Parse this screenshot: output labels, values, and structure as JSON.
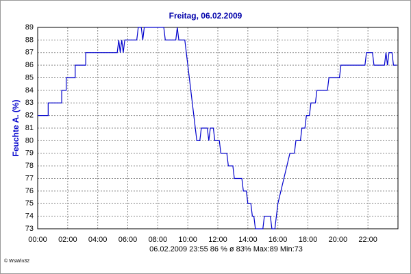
{
  "chart_data": {
    "type": "line",
    "title": "Freitag, 06.02.2009",
    "ylabel": "Feuchte A. (%)",
    "footer": "06.02.2009  23:55   86 %   ø 83%  Max:89  Min:73",
    "credit": "© WsWin32",
    "grid": true,
    "xlim": [
      0,
      24
    ],
    "ylim": [
      73,
      89
    ],
    "yticks": [
      73,
      74,
      75,
      76,
      77,
      78,
      79,
      80,
      81,
      82,
      83,
      84,
      85,
      86,
      87,
      88,
      89
    ],
    "xticks": [
      {
        "value": 0,
        "label": "00:00"
      },
      {
        "value": 2,
        "label": "02:00"
      },
      {
        "value": 4,
        "label": "04:00"
      },
      {
        "value": 6,
        "label": "06:00"
      },
      {
        "value": 8,
        "label": "08:00"
      },
      {
        "value": 10,
        "label": "10:00"
      },
      {
        "value": 12,
        "label": "12:00"
      },
      {
        "value": 14,
        "label": "14:00"
      },
      {
        "value": 16,
        "label": "16:00"
      },
      {
        "value": 18,
        "label": "18:00"
      },
      {
        "value": 20,
        "label": "20:00"
      },
      {
        "value": 22,
        "label": "22:00"
      }
    ],
    "x": [
      0,
      0.7,
      0.7,
      1.6,
      1.6,
      1.9,
      1.9,
      2.5,
      2.5,
      3.2,
      3.2,
      5.3,
      5.4,
      5.5,
      5.6,
      5.7,
      5.8,
      6.6,
      6.7,
      6.9,
      7.0,
      7.1,
      8.4,
      8.5,
      9.2,
      9.3,
      9.4,
      9.8,
      9.9,
      10.0,
      10.1,
      10.2,
      10.3,
      10.4,
      10.5,
      10.6,
      10.8,
      10.9,
      11.3,
      11.4,
      11.5,
      11.7,
      11.8,
      12.1,
      12.2,
      12.6,
      12.7,
      13.0,
      13.1,
      13.6,
      13.7,
      13.9,
      14.0,
      14.2,
      14.3,
      14.4,
      14.5,
      15.0,
      15.1,
      15.5,
      15.6,
      15.8,
      15.9,
      16.0,
      16.2,
      16.4,
      16.6,
      16.8,
      17.1,
      17.2,
      17.5,
      17.6,
      17.8,
      17.9,
      18.1,
      18.2,
      18.5,
      18.6,
      19.3,
      19.4,
      20.1,
      20.2,
      21.8,
      21.9,
      22.3,
      22.4,
      23.1,
      23.2,
      23.3,
      23.4,
      23.6,
      23.7,
      23.92
    ],
    "series": [
      {
        "name": "Feuchte A.",
        "color": "#0000cc",
        "values": [
          82,
          82,
          83,
          83,
          84,
          84,
          85,
          85,
          86,
          86,
          87,
          87,
          88,
          87,
          88,
          87,
          88,
          88,
          89,
          89,
          88,
          89,
          89,
          88,
          88,
          89,
          88,
          88,
          87,
          86,
          85,
          84,
          83,
          82,
          81,
          80,
          80,
          81,
          81,
          80,
          81,
          81,
          80,
          80,
          79,
          79,
          78,
          78,
          77,
          77,
          76,
          76,
          75,
          75,
          74,
          74,
          73,
          73,
          74,
          74,
          73,
          73,
          74,
          75,
          76,
          77,
          78,
          79,
          79,
          80,
          80,
          81,
          81,
          82,
          82,
          83,
          83,
          84,
          84,
          85,
          85,
          86,
          86,
          87,
          87,
          86,
          86,
          87,
          86,
          87,
          87,
          86,
          86
        ]
      }
    ]
  }
}
